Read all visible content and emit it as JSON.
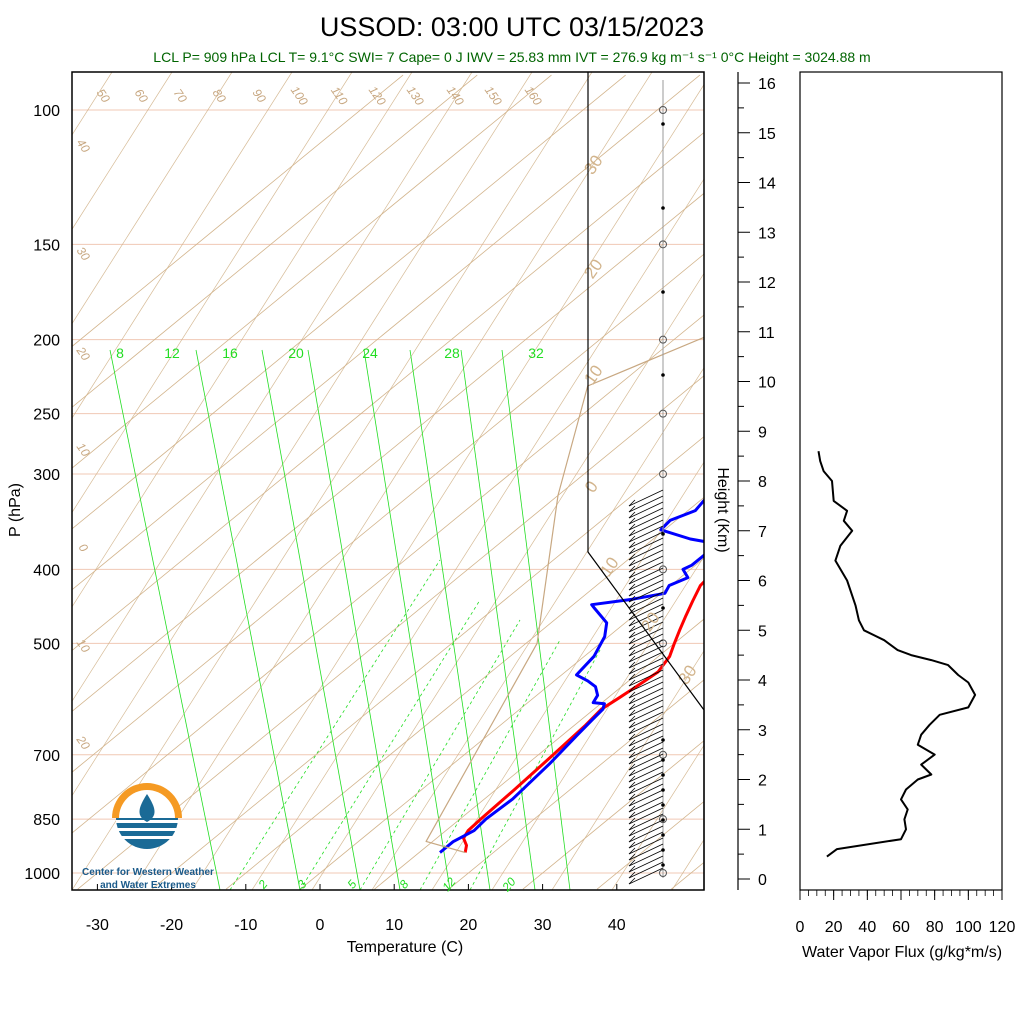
{
  "title": "USSOD: 03:00 UTC 03/15/2023",
  "subtitle": "LCL P= 909 hPa  LCL T= 9.1°C  SWI= 7  Cape= 0 J  IWV = 25.83 mm  IVT = 276.9 kg m⁻¹ s⁻¹  0°C Height = 3024.88 m",
  "logo": {
    "line1": "Center for Western Weather",
    "line2": "and Water Extremes"
  },
  "colors": {
    "temperature": "#ff0000",
    "dewpoint": "#0000ff",
    "isotherm": "#d2b48c",
    "isobar": "#f0c8b4",
    "mixing_ratio": "#22dd22",
    "parcel": "#c8a882",
    "flux": "#000000"
  },
  "chart_data": [
    {
      "type": "line",
      "name": "skew-t",
      "xlabel": "Temperature (C)",
      "ylabel": "P (hPa)",
      "x_ticks": [
        -30,
        -20,
        -10,
        0,
        10,
        20,
        30,
        40
      ],
      "y_ticks": [
        100,
        150,
        200,
        250,
        300,
        400,
        500,
        700,
        850,
        1000
      ],
      "y_scale": "log",
      "ylim": [
        1000,
        100
      ],
      "mixing_ratio_labels": [
        "8",
        "12",
        "16",
        "20",
        "24",
        "28",
        "32"
      ],
      "mixing_ratio_bottom_labels": [
        "2",
        "3",
        "5",
        "8",
        "12",
        "20"
      ],
      "dry_adiabat_labels": [
        "30",
        "20",
        "10",
        "0",
        "10",
        "20",
        "30"
      ],
      "isotherm_labels_top": [
        "50",
        "60",
        "70",
        "80",
        "90",
        "100",
        "110",
        "120",
        "130",
        "140",
        "150",
        "160"
      ],
      "isotherm_labels_left": [
        "40",
        "30",
        "20",
        "10",
        "0",
        "10",
        "20"
      ],
      "series": [
        {
          "name": "temperature",
          "points": [
            [
              16.2,
              940
            ],
            [
              15.2,
              920
            ],
            [
              13.6,
              900
            ],
            [
              13.0,
              880
            ],
            [
              12.8,
              850
            ],
            [
              12.5,
              780
            ],
            [
              12.0,
              700
            ],
            [
              11.5,
              640
            ],
            [
              11.0,
              610
            ],
            [
              11.5,
              590
            ],
            [
              12.2,
              560
            ],
            [
              12.5,
              545
            ],
            [
              11.5,
              520
            ],
            [
              10.0,
              500
            ],
            [
              8.5,
              480
            ],
            [
              7.0,
              460
            ],
            [
              5.5,
              440
            ],
            [
              4.0,
              420
            ],
            [
              3.5,
              400
            ],
            [
              3.2,
              380
            ],
            [
              2.5,
              360
            ],
            [
              1.5,
              340
            ],
            [
              0.8,
              325
            ]
          ]
        },
        {
          "name": "dewpoint",
          "points": [
            [
              12.8,
              940
            ],
            [
              12.8,
              910
            ],
            [
              13.8,
              880
            ],
            [
              13.5,
              850
            ],
            [
              13.8,
              800
            ],
            [
              13.0,
              720
            ],
            [
              12.0,
              660
            ],
            [
              11.5,
              630
            ],
            [
              11.2,
              610
            ],
            [
              10.5,
              600
            ],
            [
              8.8,
              598
            ],
            [
              8.2,
              585
            ],
            [
              6.5,
              570
            ],
            [
              4.5,
              560
            ],
            [
              2.0,
              550
            ],
            [
              1.3,
              520
            ],
            [
              -0.5,
              490
            ],
            [
              -2.5,
              470
            ],
            [
              -6.5,
              450
            ],
            [
              -7.5,
              445
            ],
            [
              -3.0,
              438
            ],
            [
              0.5,
              430
            ],
            [
              -0.2,
              420
            ],
            [
              1.0,
              410
            ],
            [
              -1.0,
              400
            ],
            [
              -0.5,
              395
            ],
            [
              -0.5,
              380
            ],
            [
              -2.5,
              368
            ],
            [
              -5.0,
              365
            ],
            [
              -10.5,
              355
            ],
            [
              -10.8,
              345
            ],
            [
              -9.0,
              335
            ],
            [
              -9.5,
              325
            ],
            [
              -9.5,
              322
            ]
          ]
        },
        {
          "name": "parcel",
          "points": [
            [
              16.2,
              940
            ],
            [
              9.1,
              909
            ],
            [
              -8.5,
              500
            ],
            [
              -30,
              320
            ],
            [
              -44,
              230
            ],
            [
              -10,
              120
            ],
            [
              3,
              100
            ]
          ]
        }
      ]
    },
    {
      "type": "line",
      "name": "water-vapor-flux",
      "xlabel": "Water Vapor Flux (g/kg*m/s)",
      "ylabel": "Height (Km)",
      "xlim": [
        0,
        120
      ],
      "ylim": [
        0,
        16
      ],
      "x_ticks": [
        0,
        20,
        40,
        60,
        80,
        100,
        120
      ],
      "y_ticks": [
        0,
        1,
        2,
        3,
        4,
        5,
        6,
        7,
        8,
        9,
        10,
        11,
        12,
        13,
        14,
        15,
        16
      ],
      "series": [
        {
          "name": "flux",
          "points": [
            [
              16,
              0.45
            ],
            [
              22,
              0.6
            ],
            [
              60,
              0.8
            ],
            [
              63,
              1.0
            ],
            [
              62,
              1.2
            ],
            [
              64,
              1.4
            ],
            [
              60,
              1.6
            ],
            [
              63,
              1.8
            ],
            [
              70,
              2.0
            ],
            [
              78,
              2.1
            ],
            [
              72,
              2.3
            ],
            [
              80,
              2.5
            ],
            [
              70,
              2.7
            ],
            [
              72,
              2.9
            ],
            [
              77,
              3.1
            ],
            [
              83,
              3.3
            ],
            [
              100,
              3.45
            ],
            [
              104,
              3.7
            ],
            [
              100,
              3.95
            ],
            [
              94,
              4.1
            ],
            [
              88,
              4.3
            ],
            [
              78,
              4.4
            ],
            [
              66,
              4.5
            ],
            [
              58,
              4.6
            ],
            [
              50,
              4.8
            ],
            [
              38,
              5.0
            ],
            [
              35,
              5.2
            ],
            [
              33,
              5.5
            ],
            [
              28,
              6.0
            ],
            [
              21,
              6.4
            ],
            [
              24,
              6.7
            ],
            [
              31,
              7.0
            ],
            [
              26,
              7.2
            ],
            [
              28,
              7.4
            ],
            [
              20,
              7.6
            ],
            [
              19,
              8.0
            ],
            [
              14,
              8.2
            ],
            [
              12,
              8.4
            ],
            [
              11,
              8.6
            ]
          ]
        }
      ]
    }
  ]
}
